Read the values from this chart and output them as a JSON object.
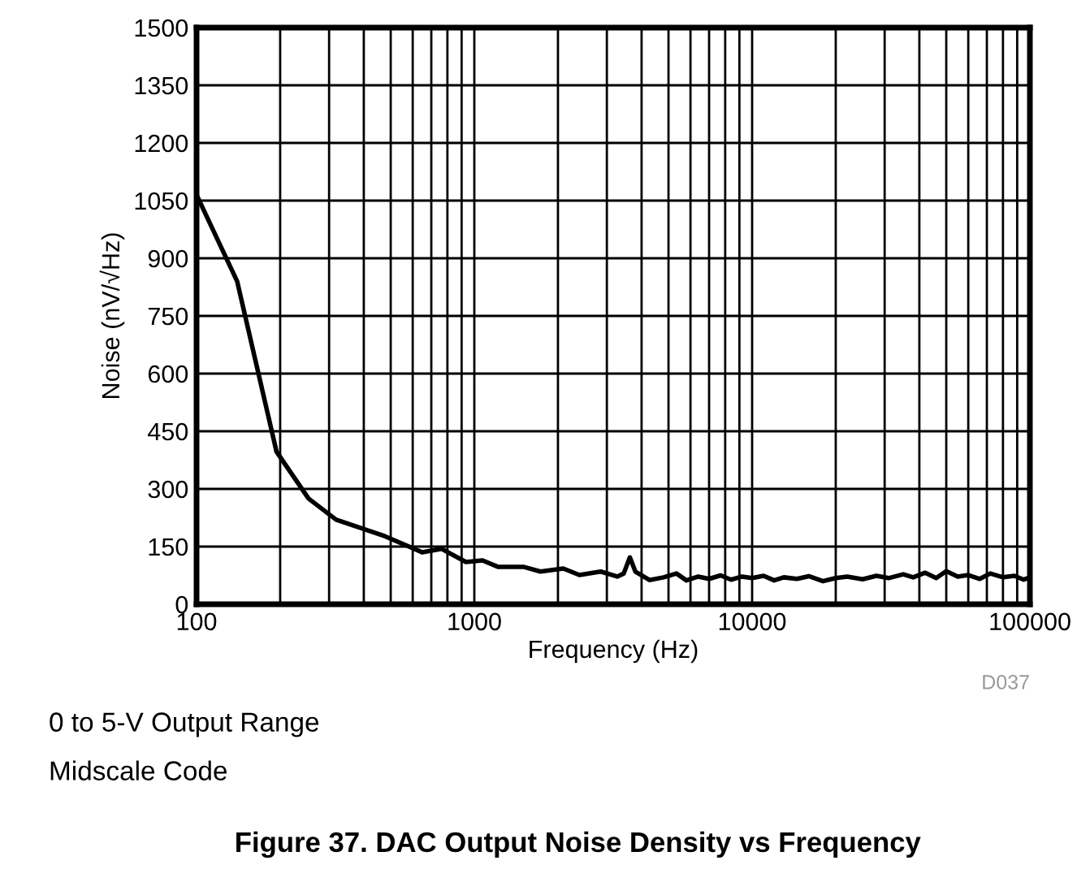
{
  "chart_data": {
    "type": "line",
    "title": "Figure 37. DAC Output Noise Density vs Frequency",
    "xlabel": "Frequency (Hz)",
    "ylabel": "Noise (nV/√Hz)",
    "annotations": [
      "D037",
      "0 to 5-V Output Range",
      "Midscale Code"
    ],
    "log": "x",
    "grid": true,
    "legend": false,
    "marker": "none",
    "line_style": "solid",
    "xlim": [
      100,
      100000
    ],
    "xticks": [
      100,
      1000,
      10000,
      100000
    ],
    "ylim": [
      0,
      1500
    ],
    "yticks": [
      0,
      150,
      300,
      450,
      600,
      750,
      900,
      1050,
      1200,
      1350,
      1500
    ],
    "series": [
      {
        "color": "#000000",
        "x": [
          100,
          140,
          194,
          253,
          318,
          476,
          650,
          763,
          933,
          1070,
          1220,
          1510,
          1730,
          2090,
          2390,
          2850,
          3270,
          3450,
          3630,
          3800,
          4270,
          4800,
          5340,
          5800,
          6400,
          7000,
          7700,
          8400,
          9200,
          10000,
          11000,
          12000,
          13000,
          14500,
          16000,
          18000,
          20000,
          22000,
          25000,
          28000,
          31000,
          35000,
          38000,
          42000,
          46000,
          50000,
          55000,
          60000,
          66000,
          72000,
          80000,
          88000,
          95000,
          100000
        ],
        "values": [
          1065,
          840,
          397,
          275,
          220,
          177,
          135,
          144,
          110,
          114,
          97,
          97,
          85,
          93,
          76,
          85,
          72,
          80,
          122,
          85,
          63,
          70,
          80,
          62,
          72,
          66,
          75,
          64,
          72,
          68,
          74,
          62,
          70,
          66,
          73,
          60,
          68,
          72,
          65,
          74,
          68,
          78,
          70,
          82,
          68,
          86,
          72,
          76,
          66,
          80,
          70,
          74,
          64,
          70
        ]
      }
    ]
  }
}
